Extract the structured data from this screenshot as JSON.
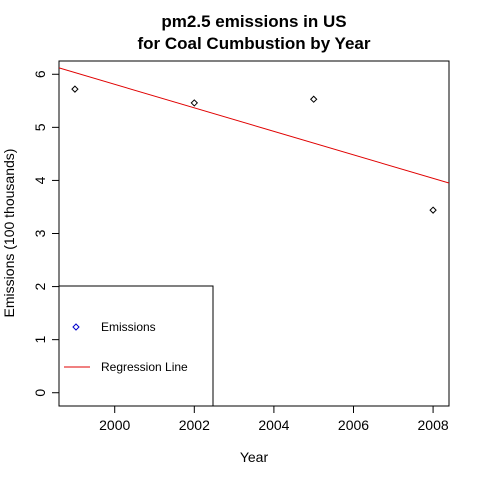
{
  "chart_data": {
    "type": "scatter",
    "title": [
      "pm2.5 emissions in US",
      "for Coal Cumbustion by Year"
    ],
    "xlabel": "Year",
    "ylabel": "Emissions (100 thousands)",
    "xlim": [
      1998.6,
      2008.4
    ],
    "ylim": [
      -0.25,
      6.25
    ],
    "xticks": [
      2000,
      2002,
      2004,
      2006,
      2008
    ],
    "yticks": [
      0,
      1,
      2,
      3,
      4,
      5,
      6
    ],
    "grid": false,
    "series": [
      {
        "name": "Emissions",
        "marker": "open-diamond",
        "color": "#00008b",
        "x": [
          1999,
          2002,
          2005,
          2008
        ],
        "y": [
          5.72,
          5.46,
          5.53,
          3.44
        ]
      }
    ],
    "regression_line": {
      "name": "Regression Line",
      "color": "#e00000",
      "x": [
        1998.6,
        2008.4
      ],
      "y": [
        6.12,
        3.95
      ]
    },
    "legend": {
      "placement": "bottom-left",
      "entries": [
        {
          "label": "Emissions",
          "symbol": "open-diamond",
          "color": "#0000cc"
        },
        {
          "label": "Regression Line",
          "symbol": "line",
          "color": "#e00000"
        }
      ]
    }
  }
}
